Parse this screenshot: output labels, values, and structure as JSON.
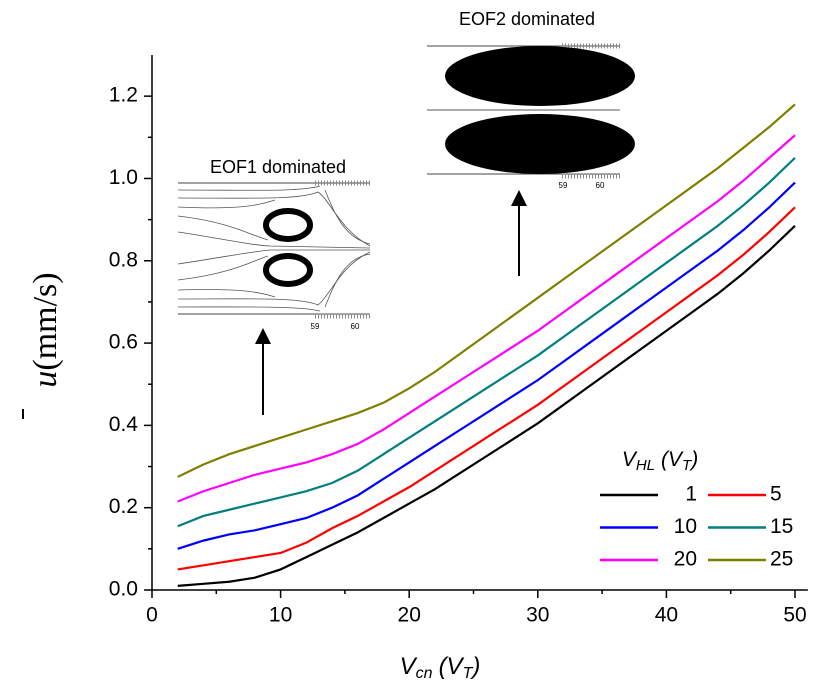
{
  "chart_data": {
    "type": "line",
    "x": [
      2,
      4,
      6,
      8,
      10,
      12,
      14,
      16,
      18,
      20,
      22,
      24,
      26,
      28,
      30,
      32,
      34,
      36,
      38,
      40,
      42,
      44,
      46,
      48,
      50
    ],
    "series": [
      {
        "name": "1",
        "color": "#000000",
        "values": [
          0.01,
          0.015,
          0.02,
          0.03,
          0.05,
          0.08,
          0.11,
          0.14,
          0.175,
          0.21,
          0.245,
          0.285,
          0.325,
          0.365,
          0.405,
          0.45,
          0.495,
          0.54,
          0.585,
          0.63,
          0.675,
          0.72,
          0.77,
          0.825,
          0.885
        ]
      },
      {
        "name": "5",
        "color": "#ff0000",
        "values": [
          0.05,
          0.06,
          0.07,
          0.08,
          0.09,
          0.115,
          0.15,
          0.18,
          0.215,
          0.25,
          0.29,
          0.33,
          0.37,
          0.41,
          0.45,
          0.495,
          0.54,
          0.585,
          0.63,
          0.675,
          0.72,
          0.765,
          0.815,
          0.87,
          0.93
        ]
      },
      {
        "name": "10",
        "color": "#0000ff",
        "values": [
          0.1,
          0.12,
          0.135,
          0.145,
          0.16,
          0.175,
          0.2,
          0.23,
          0.27,
          0.31,
          0.35,
          0.39,
          0.43,
          0.47,
          0.51,
          0.555,
          0.6,
          0.645,
          0.69,
          0.735,
          0.78,
          0.825,
          0.875,
          0.93,
          0.99
        ]
      },
      {
        "name": "15",
        "color": "#007f7f",
        "values": [
          0.155,
          0.18,
          0.195,
          0.21,
          0.225,
          0.24,
          0.26,
          0.29,
          0.33,
          0.37,
          0.41,
          0.45,
          0.49,
          0.53,
          0.57,
          0.615,
          0.66,
          0.705,
          0.75,
          0.795,
          0.84,
          0.885,
          0.935,
          0.99,
          1.05
        ]
      },
      {
        "name": "20",
        "color": "#ff00ff",
        "values": [
          0.215,
          0.24,
          0.26,
          0.28,
          0.295,
          0.31,
          0.33,
          0.355,
          0.39,
          0.43,
          0.47,
          0.51,
          0.55,
          0.59,
          0.63,
          0.675,
          0.72,
          0.765,
          0.81,
          0.855,
          0.9,
          0.945,
          0.995,
          1.05,
          1.105
        ]
      },
      {
        "name": "25",
        "color": "#808000",
        "values": [
          0.275,
          0.305,
          0.33,
          0.35,
          0.37,
          0.39,
          0.41,
          0.43,
          0.455,
          0.49,
          0.53,
          0.575,
          0.62,
          0.665,
          0.71,
          0.755,
          0.8,
          0.845,
          0.89,
          0.935,
          0.98,
          1.025,
          1.075,
          1.125,
          1.18
        ]
      }
    ],
    "xlim": [
      0,
      51
    ],
    "ylim": [
      0,
      1.3
    ],
    "xticks": [
      0,
      10,
      20,
      30,
      40,
      50
    ],
    "xminorticks": [
      5,
      15,
      25,
      35,
      45
    ],
    "yticks": [
      {
        "value": 0,
        "label": "0.0"
      },
      {
        "value": 0.2,
        "label": "0.2"
      },
      {
        "value": 0.4,
        "label": "0.4"
      },
      {
        "value": 0.6,
        "label": "0.6"
      },
      {
        "value": 0.8,
        "label": "0.8"
      },
      {
        "value": 1.0,
        "label": "1.0"
      },
      {
        "value": 1.2,
        "label": "1.2"
      }
    ],
    "yminorticks": [
      0.1,
      0.3,
      0.5,
      0.7,
      0.9,
      1.1
    ],
    "xlabel": {
      "main": "V",
      "sub": "cn",
      "unit": "(V",
      "unit_sub": "T",
      "close": ")"
    },
    "ylabel": {
      "main": "u",
      "unit": "(mm/s)"
    },
    "legend": {
      "title": "V",
      "title_sub": "HL",
      "title_unit": "(V",
      "title_unit_sub": "T",
      "title_close": ")",
      "columns": 2
    },
    "annotations": [
      {
        "text": "EOF1 dominated",
        "tick_labels": [
          "59",
          "60"
        ]
      },
      {
        "text": "EOF2 dominated",
        "tick_labels": [
          "59",
          "60"
        ]
      }
    ]
  }
}
